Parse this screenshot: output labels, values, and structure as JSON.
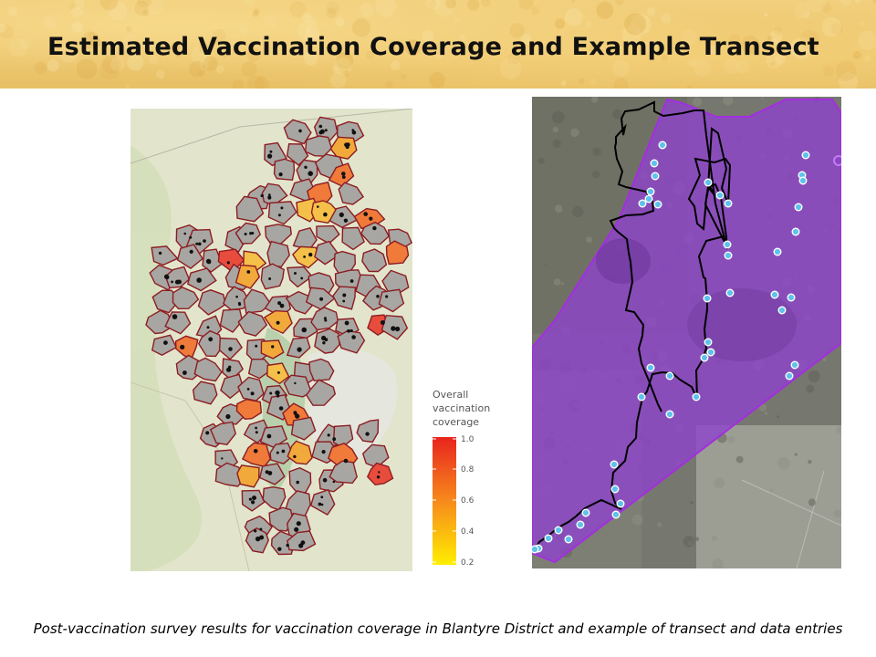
{
  "title": "Estimated Vaccination Coverage and Example Transect",
  "caption": "Post-vaccination survey results for vaccination coverage in Blantyre District and example of transect and data entries",
  "coverage_map": {
    "legend": {
      "title_lines": [
        "Overall",
        "vaccination",
        "coverage"
      ],
      "ticks": [
        "1.0",
        "0.8",
        "0.6",
        "0.4",
        "0.2"
      ],
      "color_high": "#e8241e",
      "color_low": "#ffee00"
    },
    "colors": {
      "polygon_fill": "#a8a6a2",
      "polygon_border": "#8c1c22",
      "base_map": "#dfe3c8"
    }
  },
  "transect_map": {
    "colors": {
      "area_fill": "#8e44c9",
      "area_border": "#a32ee0",
      "track_line": "#000000",
      "data_point": "#5fc2ec"
    }
  }
}
